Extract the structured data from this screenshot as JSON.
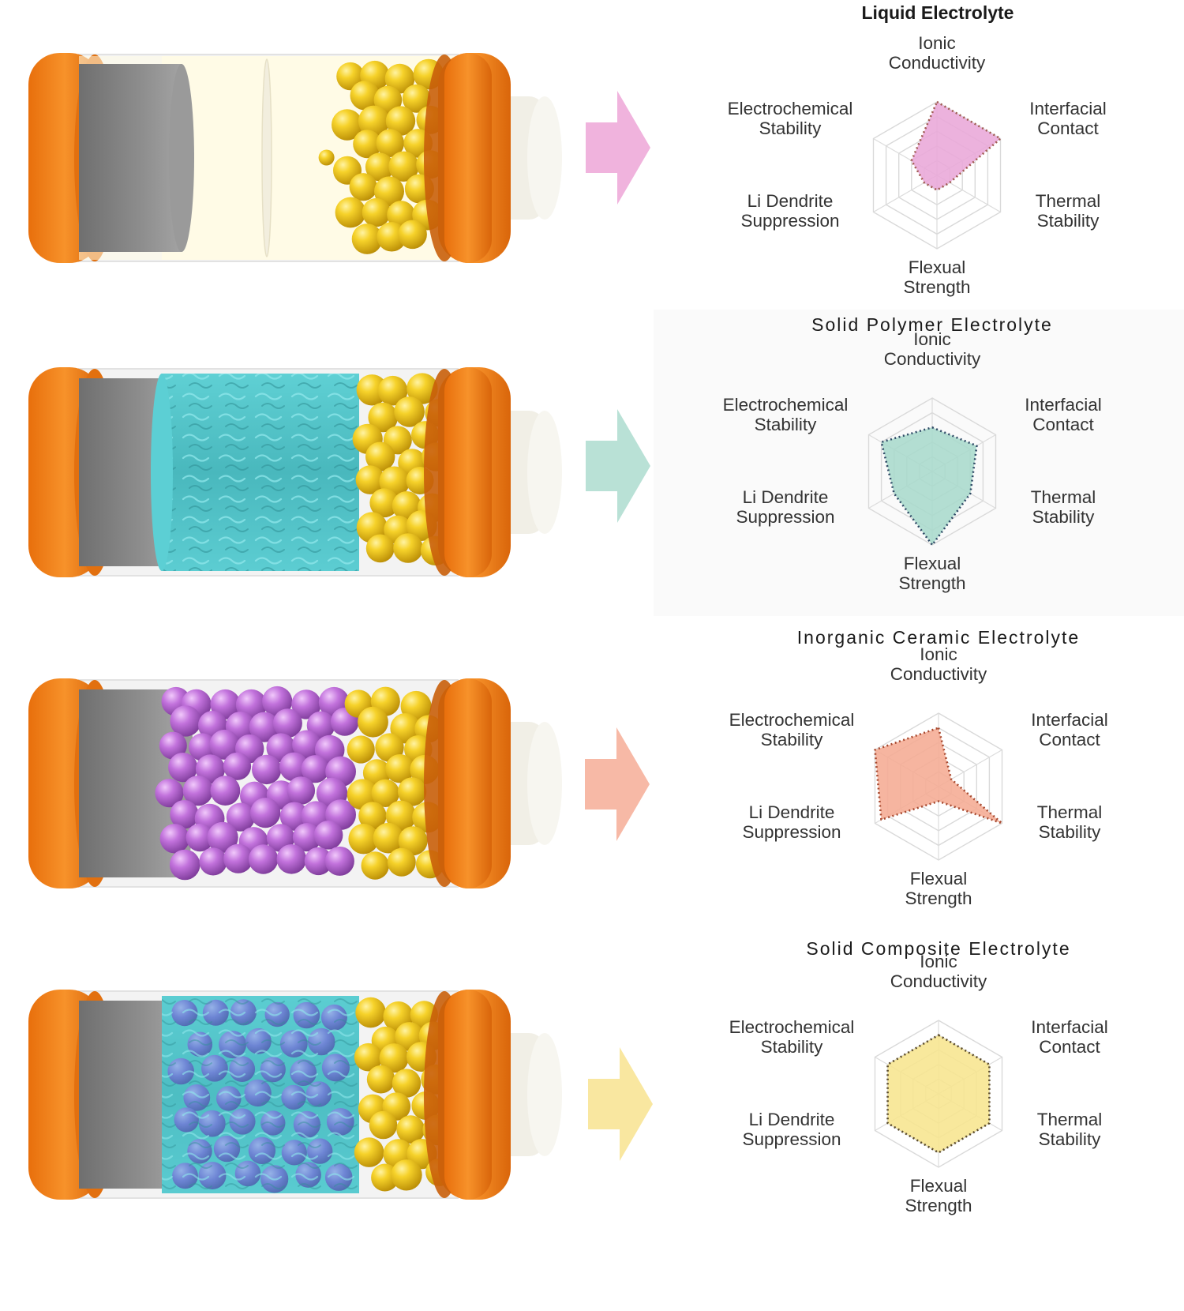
{
  "axes": [
    [
      "Ionic",
      "Conductivity"
    ],
    [
      "Interfacial",
      "Contact"
    ],
    [
      "Thermal",
      "Stability"
    ],
    [
      "Flexual",
      "Strength"
    ],
    [
      "Li Dendrite",
      "Suppression"
    ],
    [
      "Electrochemical",
      "Stability"
    ]
  ],
  "rows": [
    {
      "title": "Liquid Electrolyte",
      "electrolyte_material": "liquid",
      "arrow_color": "#f0b3dd",
      "fill_color": "#e9a7d8",
      "stroke_color": "#a05a50",
      "chart_data": {
        "type": "radar",
        "title": "Liquid Electrolyte",
        "axes": [
          "Ionic Conductivity",
          "Interfacial Contact",
          "Thermal Stability",
          "Flexual Strength",
          "Li Dendrite Suppression",
          "Electrochemical Stability"
        ],
        "scale": [
          0,
          5
        ],
        "values": [
          5,
          5,
          1,
          1,
          1,
          2
        ]
      }
    },
    {
      "title": "Solid Polymer Electrolyte",
      "electrolyte_material": "polymer",
      "arrow_color": "#b9e1d6",
      "fill_color": "#a8d9cc",
      "stroke_color": "#2f4a66",
      "chart_data": {
        "type": "radar",
        "title": "Solid Polymer Electrolyte",
        "axes": [
          "Ionic Conductivity",
          "Interfacial Contact",
          "Thermal Stability",
          "Flexual Strength",
          "Li Dendrite Suppression",
          "Electrochemical Stability"
        ],
        "scale": [
          0,
          5
        ],
        "values": [
          3,
          3.5,
          3,
          5,
          3,
          4
        ]
      }
    },
    {
      "title": "Inorganic Ceramic Electrolyte",
      "electrolyte_material": "ceramic",
      "arrow_color": "#f7b9a6",
      "fill_color": "#f5ab93",
      "stroke_color": "#a84a30",
      "chart_data": {
        "type": "radar",
        "title": "Inorganic Ceramic Electrolyte",
        "axes": [
          "Ionic Conductivity",
          "Interfacial Contact",
          "Thermal Stability",
          "Flexual Strength",
          "Li Dendrite Suppression",
          "Electrochemical Stability"
        ],
        "scale": [
          0,
          5
        ],
        "values": [
          4,
          1,
          5,
          1,
          4.5,
          5
        ]
      }
    },
    {
      "title": "Solid Composite Electrolyte",
      "electrolyte_material": "composite",
      "arrow_color": "#f9e7a0",
      "fill_color": "#f7e58e",
      "stroke_color": "#5a4a2a",
      "chart_data": {
        "type": "radar",
        "title": "Solid Composite Electrolyte",
        "axes": [
          "Ionic Conductivity",
          "Interfacial Contact",
          "Thermal Stability",
          "Flexual Strength",
          "Li Dendrite Suppression",
          "Electrochemical Stability"
        ],
        "scale": [
          0,
          5
        ],
        "values": [
          4,
          4,
          4,
          4,
          4,
          4
        ]
      }
    }
  ],
  "colors": {
    "cap_orange": "#f28a1e",
    "anode_gray": "#868686",
    "cathode_particles": "#f2c81c",
    "ceramic_particles": "#bf6fd6",
    "polymer_cyan": "#56c9cf",
    "liquid_cream": "#fffbe6",
    "terminal_cream": "#f1efe6"
  },
  "icons": {
    "arrow": "right-arrow-icon",
    "anode": "anode-disc",
    "cathode": "cathode-particles",
    "cap": "battery-cap"
  }
}
